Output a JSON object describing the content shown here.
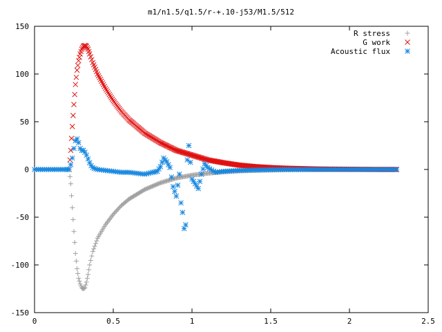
{
  "chart_data": {
    "type": "scatter",
    "title": "m1/n1.5/q1.5/r-+.10-j53/M1.5/512",
    "xlabel": "",
    "ylabel": "",
    "xlim": [
      0,
      2.5
    ],
    "ylim": [
      -150,
      150
    ],
    "xticks": [
      "0",
      "0.5",
      "1",
      "1.5",
      "2",
      "2.5"
    ],
    "yticks": [
      "150",
      "100",
      "50",
      "0",
      "-50",
      "-100",
      "-150"
    ],
    "grid": false,
    "legend_position": "top-right",
    "series": [
      {
        "name": "R stress",
        "marker": "+",
        "color": "#a0a0a0",
        "x": [
          0.22,
          0.23,
          0.24,
          0.25,
          0.26,
          0.27,
          0.28,
          0.29,
          0.3,
          0.31,
          0.32,
          0.33,
          0.34,
          0.35,
          0.37,
          0.4,
          0.45,
          0.5,
          0.55,
          0.6,
          0.7,
          0.8,
          0.9,
          1.0,
          1.1,
          1.2,
          1.3,
          1.4,
          1.5,
          1.6,
          1.8,
          2.0,
          2.2,
          2.3
        ],
        "y": [
          0,
          -15,
          -40,
          -65,
          -88,
          -104,
          -114,
          -120,
          -124,
          -125,
          -124,
          -118,
          -110,
          -100,
          -86,
          -72,
          -58,
          -47,
          -38,
          -31,
          -21,
          -14,
          -9,
          -6,
          -4,
          -2.5,
          -1.5,
          -1,
          -0.6,
          -0.3,
          -0.1,
          0,
          0,
          0
        ]
      },
      {
        "name": "G work",
        "marker": "x",
        "color": "#e01010",
        "x": [
          0.22,
          0.23,
          0.24,
          0.25,
          0.26,
          0.27,
          0.28,
          0.29,
          0.3,
          0.31,
          0.32,
          0.33,
          0.34,
          0.35,
          0.37,
          0.4,
          0.45,
          0.5,
          0.55,
          0.6,
          0.7,
          0.8,
          0.9,
          1.0,
          1.1,
          1.2,
          1.3,
          1.4,
          1.5,
          1.6,
          1.8,
          2.0,
          2.2,
          2.3
        ],
        "y": [
          0,
          20,
          45,
          68,
          89,
          104,
          114,
          121,
          126,
          129,
          130,
          129,
          126,
          121,
          112,
          100,
          85,
          72,
          61,
          52,
          38,
          28,
          20,
          15,
          10,
          7,
          4.5,
          3,
          2,
          1.3,
          0.5,
          0.2,
          0,
          0
        ],
        "dense": true
      },
      {
        "name": "Acoustic flux",
        "marker": "*",
        "color": "#1888e0",
        "x": [
          0.0,
          0.05,
          0.1,
          0.15,
          0.2,
          0.22,
          0.23,
          0.24,
          0.25,
          0.26,
          0.27,
          0.28,
          0.29,
          0.3,
          0.31,
          0.32,
          0.33,
          0.34,
          0.35,
          0.36,
          0.37,
          0.38,
          0.4,
          0.45,
          0.5,
          0.55,
          0.6,
          0.65,
          0.7,
          0.75,
          0.78,
          0.8,
          0.82,
          0.84,
          0.86,
          0.88,
          0.9,
          0.92,
          0.93,
          0.94,
          0.95,
          0.96,
          0.97,
          0.98,
          1.0,
          1.02,
          1.04,
          1.06,
          1.08,
          1.1,
          1.15,
          1.2,
          1.3,
          1.4,
          1.5,
          1.6,
          1.7,
          1.8,
          1.9,
          2.0,
          2.1,
          2.2,
          2.3
        ],
        "y": [
          0,
          0,
          0,
          0,
          0,
          0,
          5,
          12,
          22,
          30,
          32,
          28,
          22,
          20,
          20,
          18,
          15,
          11,
          7,
          4,
          2,
          1,
          0,
          -1,
          -2,
          -3,
          -3,
          -4,
          -5,
          -3,
          -2,
          3,
          12,
          8,
          2,
          -18,
          -28,
          -5,
          -35,
          -45,
          -62,
          -58,
          10,
          25,
          -10,
          -15,
          -20,
          -5,
          6,
          2,
          -3,
          -2,
          -1,
          -0.5,
          -0.2,
          0,
          0,
          0,
          0,
          0,
          0,
          0,
          0
        ]
      }
    ]
  }
}
